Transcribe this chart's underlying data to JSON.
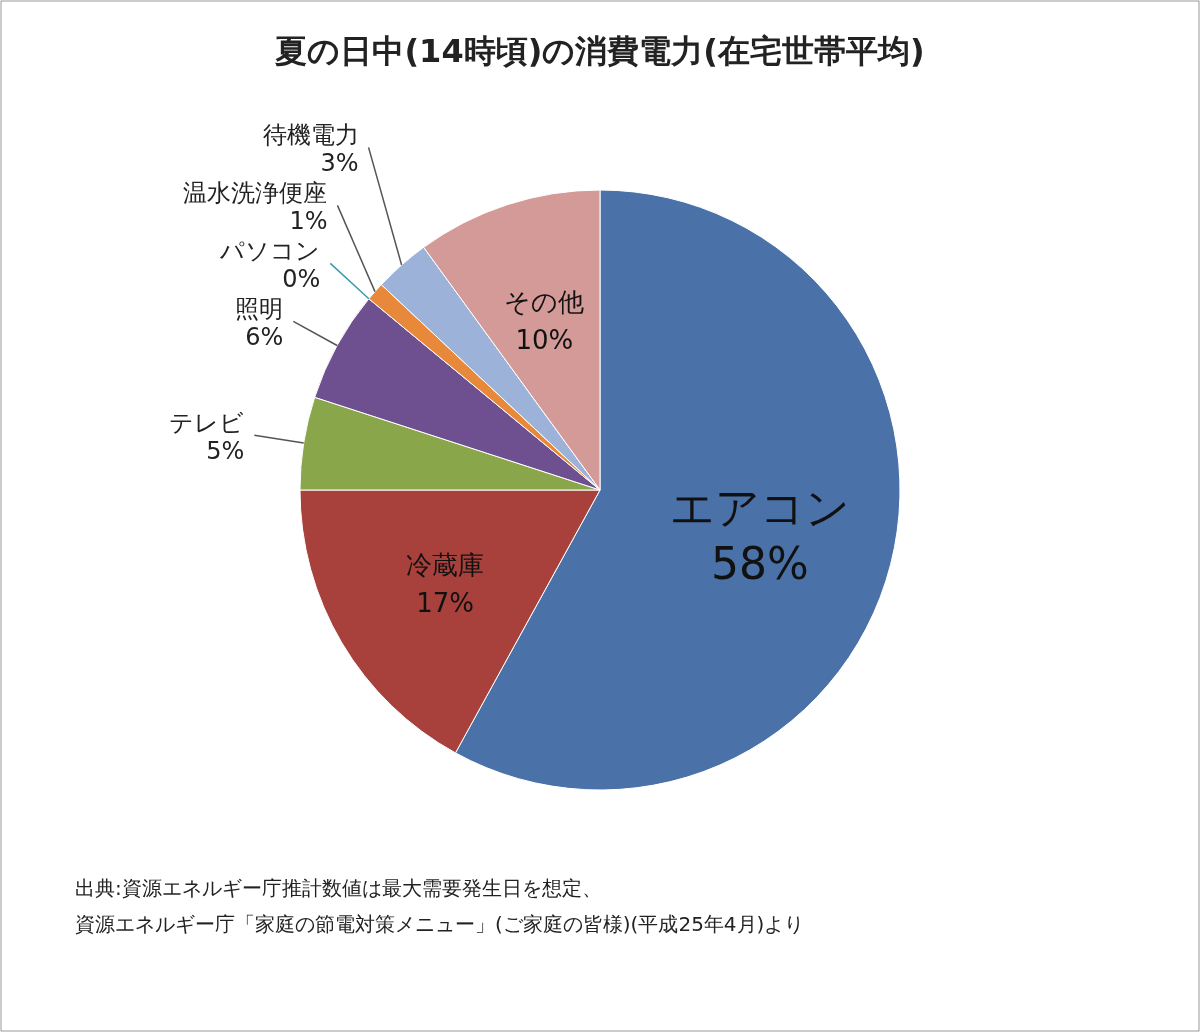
{
  "chart_data": {
    "type": "pie",
    "title": "夏の日中(14時頃)の消費電力(在宅世帯平均)",
    "categories": [
      "エアコン",
      "冷蔵庫",
      "テレビ",
      "照明",
      "パソコン",
      "温水洗浄便座",
      "待機電力",
      "その他"
    ],
    "values": [
      58,
      17,
      5,
      6,
      0,
      1,
      3,
      10
    ],
    "value_labels": [
      "58%",
      "17%",
      "5%",
      "6%",
      "0%",
      "1%",
      "3%",
      "10%"
    ],
    "colors": [
      "#4a72a8",
      "#a8403c",
      "#8aa64a",
      "#6e4f8f",
      "#3a9ab0",
      "#e8883a",
      "#9db2d8",
      "#d49a98"
    ],
    "annotations": [
      "出典:資源エネルギー庁推計数値は最大需要発生日を想定、",
      "資源エネルギー庁「家庭の節電対策メニュー」(ご家庭の皆様)(平成25年4月)より"
    ]
  }
}
